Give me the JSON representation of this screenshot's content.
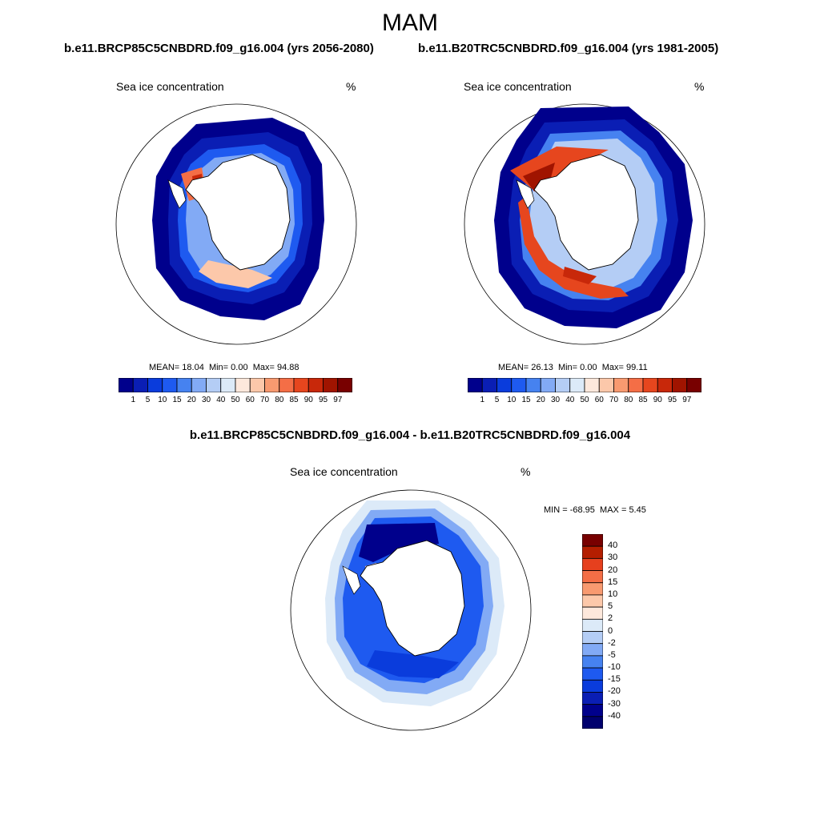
{
  "season": "MAM",
  "case_titles": [
    "b.e11.BRCP85C5CNBDRD.f09_g16.004 (yrs 2056-2080)",
    "b.e11.B20TRC5CNBDRD.f09_g16.004 (yrs 1981-2005)"
  ],
  "diff_title": "b.e11.BRCP85C5CNBDRD.f09_g16.004 - b.e11.B20TRC5CNBDRD.f09_g16.004",
  "panels": [
    {
      "variable": "Sea ice concentration",
      "units": "%",
      "stats": {
        "mean_label": "MEAN=",
        "mean": "18.04",
        "min_label": "Min=",
        "min": "0.00",
        "max_label": "Max=",
        "max": "94.88"
      }
    },
    {
      "variable": "Sea ice concentration",
      "units": "%",
      "stats": {
        "mean_label": "MEAN=",
        "mean": "26.13",
        "min_label": "Min=",
        "min": "0.00",
        "max_label": "Max=",
        "max": "99.11"
      }
    },
    {
      "variable": "Sea ice concentration",
      "units": "%",
      "stats": {
        "min_label": "MIN =",
        "min": "-68.95",
        "max_label": "MAX =",
        "max": "5.45"
      }
    }
  ],
  "colorbar_abs": {
    "levels": [
      "1",
      "5",
      "10",
      "15",
      "20",
      "30",
      "40",
      "50",
      "60",
      "70",
      "80",
      "85",
      "90",
      "95",
      "97"
    ],
    "colors": [
      "#00008c",
      "#0a1eb4",
      "#0a3cdc",
      "#1e5af0",
      "#4682f0",
      "#82aaf5",
      "#b4cdf5",
      "#dceaf8",
      "#fde8dc",
      "#fcc8aa",
      "#f89a70",
      "#f46e46",
      "#e6461e",
      "#c8280a",
      "#a01400",
      "#780000"
    ]
  },
  "colorbar_diff": {
    "levels": [
      "40",
      "30",
      "20",
      "15",
      "10",
      "5",
      "2",
      "0",
      "-2",
      "-5",
      "-10",
      "-15",
      "-20",
      "-30",
      "-40"
    ],
    "colors": [
      "#780000",
      "#b41e00",
      "#e6401e",
      "#f46e46",
      "#f89a70",
      "#fcc8aa",
      "#fde8dc",
      "#dceaf8",
      "#b4cdf5",
      "#82aaf5",
      "#4682f0",
      "#1e5af0",
      "#0a3cdc",
      "#0a1eb4",
      "#00008c",
      "#00006e"
    ]
  },
  "legend_palette": {
    "frame": "#000000",
    "land": "#ffffff",
    "ocean": "#ffffff"
  }
}
